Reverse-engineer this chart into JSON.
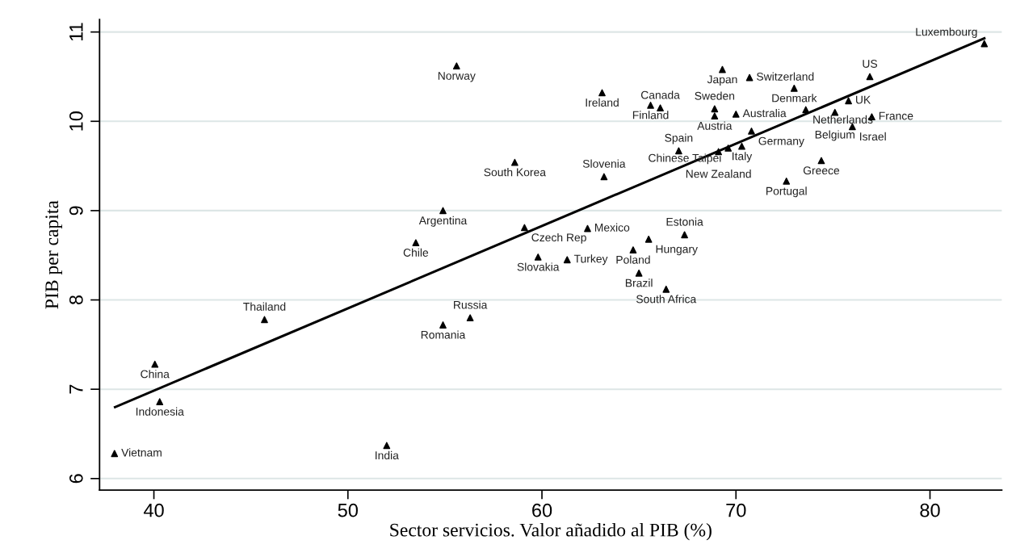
{
  "chart_data": {
    "type": "scatter",
    "xlabel": "Sector servicios. Valor añadido al PIB (%)",
    "ylabel": "PIB per capita",
    "xlim": [
      37.2,
      83.7
    ],
    "ylim": [
      5.87,
      11.14
    ],
    "xticks": [
      40,
      50,
      60,
      70,
      80
    ],
    "yticks": [
      6,
      7,
      8,
      9,
      10,
      11
    ],
    "grid": "y",
    "marker": "triangle",
    "legend": false,
    "series": [
      {
        "color": "#000000",
        "x": [
          37.97,
          40.05,
          40.3,
          45.7,
          52.0,
          54.9,
          56.3,
          55.6,
          63.1,
          65.6,
          66.1,
          68.9,
          68.9,
          70.0,
          70.8,
          69.3,
          70.7,
          73.0,
          73.6,
          70.3,
          67.05,
          69.1,
          69.6,
          82.8,
          76.9,
          75.8,
          75.1,
          77.0,
          76.0,
          74.4,
          72.6,
          58.6,
          63.2,
          54.9,
          53.5,
          59.1,
          62.35,
          59.8,
          61.3,
          65.5,
          67.35,
          64.7,
          65.0,
          66.4
        ],
        "values": [
          6.28,
          7.28,
          6.86,
          7.78,
          6.37,
          7.72,
          7.8,
          10.62,
          10.32,
          10.18,
          10.15,
          10.14,
          10.06,
          10.08,
          9.89,
          10.58,
          10.49,
          10.37,
          10.13,
          9.72,
          9.67,
          9.66,
          9.7,
          10.87,
          10.5,
          10.23,
          10.1,
          10.05,
          9.94,
          9.56,
          9.33,
          9.54,
          9.38,
          9.0,
          8.64,
          8.81,
          8.8,
          8.48,
          8.45,
          8.68,
          8.73,
          8.56,
          8.3,
          8.12
        ]
      },
      {
        "type": "line",
        "color": "#000000",
        "line_style": "solid",
        "marker": "none",
        "x": [
          38.0,
          82.8
        ],
        "values": [
          6.8,
          10.93
        ]
      }
    ],
    "annotations": [
      {
        "text": "Vietnam",
        "x": 37.97,
        "y": 6.28
      },
      {
        "text": "China",
        "x": 40.05,
        "y": 7.28
      },
      {
        "text": "Indonesia",
        "x": 40.3,
        "y": 6.86
      },
      {
        "text": "Thailand",
        "x": 45.7,
        "y": 7.78
      },
      {
        "text": "India",
        "x": 52.0,
        "y": 6.37
      },
      {
        "text": "Romania",
        "x": 54.9,
        "y": 7.72
      },
      {
        "text": "Russia",
        "x": 56.3,
        "y": 7.8
      },
      {
        "text": "Norway",
        "x": 55.6,
        "y": 10.62
      },
      {
        "text": "Ireland",
        "x": 63.1,
        "y": 10.32
      },
      {
        "text": "Finland",
        "x": 65.6,
        "y": 10.18
      },
      {
        "text": "Canada",
        "x": 66.1,
        "y": 10.15
      },
      {
        "text": "Sweden",
        "x": 68.9,
        "y": 10.14
      },
      {
        "text": "Austria",
        "x": 68.9,
        "y": 10.06
      },
      {
        "text": "Australia",
        "x": 70.0,
        "y": 10.08
      },
      {
        "text": "Germany",
        "x": 70.8,
        "y": 9.89
      },
      {
        "text": "Japan",
        "x": 69.3,
        "y": 10.58
      },
      {
        "text": "Switzerland",
        "x": 70.7,
        "y": 10.49
      },
      {
        "text": "Denmark",
        "x": 73.0,
        "y": 10.37
      },
      {
        "text": "Netherlands",
        "x": 73.6,
        "y": 10.13
      },
      {
        "text": "Italy",
        "x": 70.3,
        "y": 9.72
      },
      {
        "text": "Spain",
        "x": 67.05,
        "y": 9.67
      },
      {
        "text": "New Zealand",
        "x": 69.1,
        "y": 9.66
      },
      {
        "text": "Chinese Taipei",
        "x": 69.6,
        "y": 9.7
      },
      {
        "text": "Luxembourg",
        "x": 82.8,
        "y": 10.87
      },
      {
        "text": "US",
        "x": 76.9,
        "y": 10.5
      },
      {
        "text": "UK",
        "x": 75.8,
        "y": 10.23
      },
      {
        "text": "Belgium",
        "x": 75.1,
        "y": 10.1
      },
      {
        "text": "France",
        "x": 77.0,
        "y": 10.05
      },
      {
        "text": "Israel",
        "x": 76.0,
        "y": 9.94
      },
      {
        "text": "Greece",
        "x": 74.4,
        "y": 9.56
      },
      {
        "text": "Portugal",
        "x": 72.6,
        "y": 9.33
      },
      {
        "text": "South Korea",
        "x": 58.6,
        "y": 9.54
      },
      {
        "text": "Slovenia",
        "x": 63.2,
        "y": 9.38
      },
      {
        "text": "Argentina",
        "x": 54.9,
        "y": 9.0
      },
      {
        "text": "Chile",
        "x": 53.5,
        "y": 8.64
      },
      {
        "text": "Czech Rep",
        "x": 59.1,
        "y": 8.81
      },
      {
        "text": "Mexico",
        "x": 62.35,
        "y": 8.8
      },
      {
        "text": "Slovakia",
        "x": 59.8,
        "y": 8.48
      },
      {
        "text": "Turkey",
        "x": 61.3,
        "y": 8.45
      },
      {
        "text": "Hungary",
        "x": 65.5,
        "y": 8.68
      },
      {
        "text": "Estonia",
        "x": 67.35,
        "y": 8.73
      },
      {
        "text": "Poland",
        "x": 64.7,
        "y": 8.56
      },
      {
        "text": "Brazil",
        "x": 65.0,
        "y": 8.3
      },
      {
        "text": "South Africa",
        "x": 66.4,
        "y": 8.12
      }
    ]
  }
}
